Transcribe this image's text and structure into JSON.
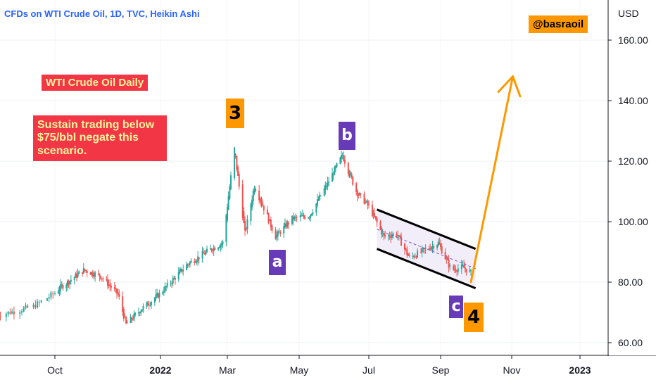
{
  "header": {
    "symbol_line": "CFDs on WTI Crude Oil, 1D, TVC, Heikin Ashi",
    "currency": "USD",
    "handle": "@basraoil"
  },
  "annotations": {
    "title_box": "WTI Crude Oil Daily",
    "note_lines": [
      "Sustain trading below",
      "$75/bbl negate this",
      "scenario."
    ]
  },
  "wave_labels": [
    {
      "id": "3",
      "text": "3",
      "style": "orange"
    },
    {
      "id": "a",
      "text": "a",
      "style": "purple"
    },
    {
      "id": "b",
      "text": "b",
      "style": "purple"
    },
    {
      "id": "c",
      "text": "c",
      "style": "purple"
    },
    {
      "id": "4",
      "text": "4",
      "style": "orange"
    }
  ],
  "colors": {
    "up_candle": "#26a69a",
    "down_candle": "#ef5350",
    "arrow": "#ff9800",
    "channel": "#000000",
    "channel_fill": "#ede7f6",
    "note_bg": "#f23645",
    "note_text": "#fff59d",
    "wave_orange": "#ff9800",
    "wave_purple": "#673ab7",
    "axis_text": "#131722"
  },
  "chart_data": {
    "type": "candlestick",
    "chart_style": "Heikin Ashi",
    "timeframe": "1D",
    "y_axis": {
      "label": "USD",
      "ticks": [
        "60.00",
        "80.00",
        "100.00",
        "120.00",
        "140.00",
        "160.00"
      ],
      "range": [
        57,
        172
      ],
      "position": "right"
    },
    "x_axis": {
      "ticks": [
        "Oct",
        "2022",
        "Mar",
        "May",
        "Jul",
        "Sep",
        "Nov",
        "2023"
      ],
      "bold_ticks": [
        "2022",
        "2023"
      ]
    },
    "price_path": [
      [
        "2021-09-01",
        69
      ],
      [
        "2021-09-20",
        72
      ],
      [
        "2021-10-05",
        78
      ],
      [
        "2021-10-26",
        84
      ],
      [
        "2021-11-10",
        82
      ],
      [
        "2021-11-25",
        76
      ],
      [
        "2021-12-02",
        66
      ],
      [
        "2021-12-15",
        71
      ],
      [
        "2021-12-31",
        76
      ],
      [
        "2022-01-25",
        86
      ],
      [
        "2022-02-15",
        91
      ],
      [
        "2022-02-25",
        93
      ],
      [
        "2022-03-07",
        124
      ],
      [
        "2022-03-16",
        96
      ],
      [
        "2022-03-24",
        112
      ],
      [
        "2022-04-11",
        95
      ],
      [
        "2022-04-25",
        101
      ],
      [
        "2022-05-10",
        102
      ],
      [
        "2022-05-25",
        112
      ],
      [
        "2022-06-08",
        122
      ],
      [
        "2022-06-20",
        110
      ],
      [
        "2022-07-01",
        105
      ],
      [
        "2022-07-14",
        95
      ],
      [
        "2022-07-25",
        96
      ],
      [
        "2022-08-05",
        88
      ],
      [
        "2022-08-15",
        90
      ],
      [
        "2022-08-30",
        93
      ],
      [
        "2022-09-10",
        84
      ],
      [
        "2022-09-20",
        85
      ],
      [
        "2022-09-27",
        83
      ]
    ],
    "channel": {
      "upper": [
        [
          "2022-07-08",
          104
        ],
        [
          "2022-10-01",
          91
        ]
      ],
      "lower": [
        [
          "2022-07-08",
          91
        ],
        [
          "2022-10-01",
          78
        ]
      ]
    },
    "projection_arrow": {
      "from": [
        "2022-09-27",
        80
      ],
      "to": [
        "2022-11-02",
        148
      ]
    },
    "wave_points": [
      {
        "label": "3",
        "date": "2022-03-07",
        "value": 124
      },
      {
        "label": "a",
        "date": "2022-04-11",
        "value": 95
      },
      {
        "label": "b",
        "date": "2022-06-08",
        "value": 122
      },
      {
        "label": "c",
        "date": "2022-09-27",
        "value": 80
      },
      {
        "label": "4",
        "date": "2022-09-27",
        "value": 80
      }
    ]
  }
}
